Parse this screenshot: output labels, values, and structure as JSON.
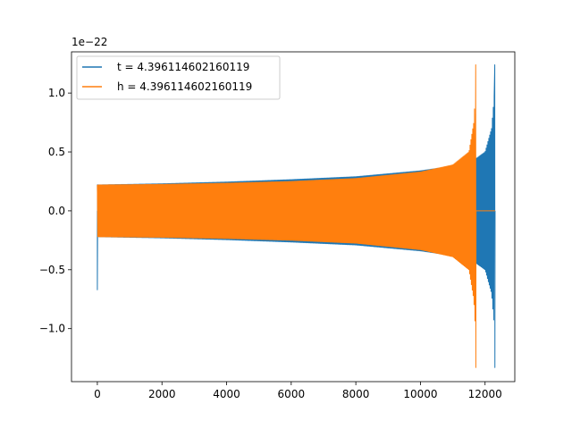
{
  "chart_data": {
    "type": "line",
    "title": "",
    "xlabel": "",
    "ylabel": "",
    "xlim": [
      -800,
      12920
    ],
    "ylim": [
      -1.45,
      1.35
    ],
    "y_offset_text": "1e−22",
    "x_ticks": [
      0,
      2000,
      4000,
      6000,
      8000,
      10000,
      12000
    ],
    "x_tick_labels": [
      "0",
      "2000",
      "4000",
      "6000",
      "8000",
      "10000",
      "12000"
    ],
    "y_ticks": [
      -1.0,
      -0.5,
      0.0,
      0.5,
      1.0
    ],
    "y_tick_labels": [
      "−1.0",
      "−0.5",
      "0.0",
      "0.5",
      "1.0"
    ],
    "grid": false,
    "legend_position": "upper-left",
    "series": [
      {
        "name": "t = 4.396114602160119",
        "color": "#1f77b4",
        "description": "oscillating signal with growing envelope (chirp)",
        "start_spike": {
          "x": 0,
          "y_min": -0.67,
          "y_max": 0.22
        },
        "envelope": [
          {
            "x": 0,
            "amp": 0.22
          },
          {
            "x": 2000,
            "amp": 0.23
          },
          {
            "x": 4000,
            "amp": 0.245
          },
          {
            "x": 6000,
            "amp": 0.265
          },
          {
            "x": 8000,
            "amp": 0.29
          },
          {
            "x": 10000,
            "amp": 0.34
          },
          {
            "x": 11000,
            "amp": 0.38
          },
          {
            "x": 11700,
            "amp": 0.44
          },
          {
            "x": 12000,
            "amp": 0.5
          },
          {
            "x": 12200,
            "amp": 0.7
          },
          {
            "x": 12290,
            "amp": 1.0
          }
        ],
        "peak": {
          "x": 12300,
          "y_max": 1.24,
          "y_min": -1.33
        },
        "end_x": 12310,
        "flat_after": false
      },
      {
        "name": "h = 4.396114602160119",
        "color": "#ff7f0e",
        "description": "oscillating signal with growing envelope (chirp), shifted earlier",
        "envelope": [
          {
            "x": 0,
            "amp": 0.22
          },
          {
            "x": 2000,
            "amp": 0.225
          },
          {
            "x": 4000,
            "amp": 0.235
          },
          {
            "x": 6000,
            "amp": 0.25
          },
          {
            "x": 8000,
            "amp": 0.275
          },
          {
            "x": 10000,
            "amp": 0.33
          },
          {
            "x": 11000,
            "amp": 0.39
          },
          {
            "x": 11500,
            "amp": 0.5
          },
          {
            "x": 11650,
            "amp": 0.75
          },
          {
            "x": 11700,
            "amp": 1.0
          }
        ],
        "peak": {
          "x": 11710,
          "y_max": 1.24,
          "y_min": -1.33
        },
        "end_x": 11720,
        "flat_after": true,
        "flat_value": 0.0,
        "flat_end_x": 12310
      }
    ]
  }
}
